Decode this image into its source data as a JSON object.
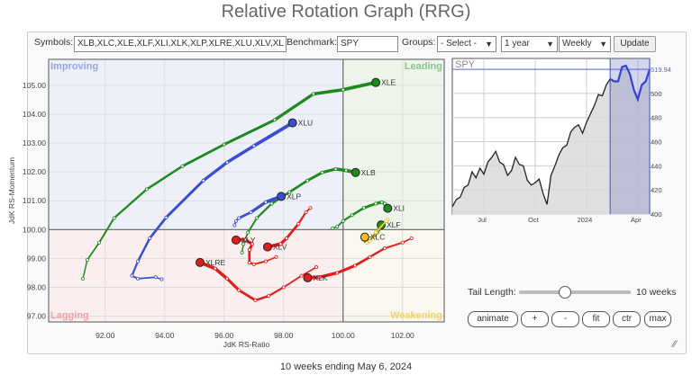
{
  "title": "Relative Rotation Graph (RRG)",
  "controls": {
    "symbols_label": "Symbols:",
    "symbols_value": "XLB,XLC,XLE,XLF,XLI,XLK,XLP,XLRE,XLU,XLV,XL",
    "benchmark_label": "Benchmark:",
    "benchmark_value": "SPY",
    "groups_label": "Groups:",
    "groups_value": "- Select -",
    "period_value": "1 year",
    "interval_value": "Weekly",
    "update_label": "Update"
  },
  "rrg": {
    "xlabel": "JdK RS-Ratio",
    "ylabel": "JdK RS-Momentum",
    "xlim": [
      90.1,
      103.4
    ],
    "ylim": [
      96.8,
      105.9
    ],
    "xticks": [
      "92.00",
      "94.00",
      "96.00",
      "98.00",
      "100.00",
      "102.00"
    ],
    "yticks": [
      "97.00",
      "98.00",
      "99.00",
      "100.00",
      "101.00",
      "102.00",
      "103.00",
      "104.00",
      "105.00"
    ],
    "quadrants": {
      "improving": "Improving",
      "leading": "Leading",
      "lagging": "Lagging",
      "weakening": "Weakening"
    },
    "colors": {
      "leading": "#1e8a1e",
      "improving": "#3a4fd0",
      "lagging": "#e01e1e",
      "weakening": "#f0c020"
    },
    "series": [
      {
        "name": "XLE",
        "quad": "leading",
        "points": [
          [
            91.25,
            98.3
          ],
          [
            91.4,
            98.95
          ],
          [
            91.8,
            99.55
          ],
          [
            92.3,
            100.4
          ],
          [
            93.4,
            101.4
          ],
          [
            94.6,
            102.2
          ],
          [
            96,
            102.95
          ],
          [
            97.7,
            103.8
          ],
          [
            99,
            104.7
          ],
          [
            100,
            104.85
          ],
          [
            101.1,
            105.1
          ]
        ]
      },
      {
        "name": "XLU",
        "quad": "improving",
        "points": [
          [
            93.9,
            98.28
          ],
          [
            93.7,
            98.35
          ],
          [
            93.1,
            98.3
          ],
          [
            92.9,
            98.4
          ],
          [
            93.1,
            98.9
          ],
          [
            93.5,
            99.7
          ],
          [
            94.05,
            100.42
          ],
          [
            95.3,
            101.7
          ],
          [
            96.1,
            102.33
          ],
          [
            97.0,
            102.9
          ],
          [
            98.3,
            103.7
          ]
        ]
      },
      {
        "name": "XLB",
        "quad": "leading",
        "points": [
          [
            96.6,
            99.2
          ],
          [
            96.65,
            99.5
          ],
          [
            96.8,
            99.9
          ],
          [
            97.1,
            100.4
          ],
          [
            97.6,
            100.9
          ],
          [
            98.2,
            101.3
          ],
          [
            98.8,
            101.7
          ],
          [
            99.3,
            101.98
          ],
          [
            99.75,
            102.1
          ],
          [
            100.1,
            102.05
          ],
          [
            100.42,
            101.98
          ]
        ]
      },
      {
        "name": "XLP",
        "quad": "improving",
        "points": [
          [
            96.35,
            100.15
          ],
          [
            96.4,
            100.3
          ],
          [
            96.5,
            100.4
          ],
          [
            96.9,
            100.6
          ],
          [
            97.4,
            100.95
          ],
          [
            97.92,
            101.15
          ]
        ]
      },
      {
        "name": "XLI",
        "quad": "leading",
        "points": [
          [
            99.65,
            100.05
          ],
          [
            99.8,
            100.1
          ],
          [
            100,
            100.3
          ],
          [
            100.3,
            100.5
          ],
          [
            100.7,
            100.75
          ],
          [
            101.1,
            100.9
          ],
          [
            101.3,
            100.95
          ],
          [
            101.4,
            100.9
          ],
          [
            101.5,
            100.74
          ]
        ]
      },
      {
        "name": "XLF",
        "quad": "leading",
        "points": [
          [
            100.75,
            99.6
          ],
          [
            100.9,
            99.7
          ],
          [
            101.05,
            99.8
          ],
          [
            101.15,
            99.9
          ],
          [
            101.2,
            100.0
          ],
          [
            101.28,
            100.16
          ]
        ]
      },
      {
        "name": "XLC",
        "quad": "weakening",
        "points": [
          [
            101.5,
            100.35
          ],
          [
            101.45,
            100.3
          ],
          [
            101.1,
            99.9
          ],
          [
            100.9,
            99.6
          ],
          [
            100.8,
            99.55
          ],
          [
            100.73,
            99.74
          ]
        ]
      },
      {
        "name": "XLV",
        "quad": "lagging",
        "points": [
          [
            98.9,
            100.75
          ],
          [
            98.75,
            100.6
          ],
          [
            98.5,
            100.2
          ],
          [
            98.1,
            99.7
          ],
          [
            97.9,
            99.5
          ],
          [
            97.46,
            99.4
          ]
        ]
      },
      {
        "name": "XLY",
        "quad": "lagging",
        "points": [
          [
            97.75,
            99.05
          ],
          [
            97.4,
            98.9
          ],
          [
            97.0,
            98.8
          ],
          [
            96.85,
            98.85
          ],
          [
            96.85,
            99.3
          ],
          [
            96.95,
            99.5
          ],
          [
            96.7,
            99.65
          ],
          [
            96.4,
            99.64
          ]
        ]
      },
      {
        "name": "XLRE",
        "quad": "lagging",
        "points": [
          [
            99.1,
            98.7
          ],
          [
            98.6,
            98.4
          ],
          [
            98.0,
            98.0
          ],
          [
            97.5,
            97.7
          ],
          [
            97.05,
            97.55
          ],
          [
            96.5,
            97.9
          ],
          [
            96.1,
            98.3
          ],
          [
            95.7,
            98.65
          ],
          [
            95.19,
            98.86
          ]
        ]
      },
      {
        "name": "XLK",
        "quad": "lagging",
        "points": [
          [
            102.3,
            99.7
          ],
          [
            102.0,
            99.55
          ],
          [
            101.4,
            99.35
          ],
          [
            100.9,
            99.05
          ],
          [
            100.4,
            98.75
          ],
          [
            99.8,
            98.5
          ],
          [
            99.2,
            98.35
          ],
          [
            98.81,
            98.33
          ]
        ]
      }
    ]
  },
  "benchmark_chart": {
    "label": "SPY",
    "last_value": "519.94",
    "ylim": [
      400,
      529
    ],
    "yticks": [
      "400",
      "420",
      "440",
      "460",
      "480",
      "500"
    ],
    "xticks": [
      "Jul",
      "Oct",
      "2024",
      "Apr"
    ],
    "prices": [
      406,
      412,
      414,
      422,
      424,
      435,
      430,
      438,
      433,
      443,
      447,
      452,
      443,
      441,
      432,
      436,
      447,
      441,
      440,
      428,
      424,
      426,
      429,
      417,
      408,
      432,
      440,
      449,
      455,
      457,
      468,
      472,
      474,
      467,
      476,
      483,
      490,
      499,
      498,
      507,
      512,
      510,
      510,
      522,
      523,
      516,
      503,
      495,
      507,
      510,
      519.94
    ],
    "tail_weeks": 10
  },
  "tail": {
    "label": "Tail Length:",
    "value_label": "10 weeks",
    "fraction": 0.4
  },
  "buttons": {
    "animate": "animate",
    "plus": "+",
    "minus": "-",
    "fit": "fit",
    "ctr": "ctr",
    "max": "max"
  },
  "footer": "10 weeks ending May 6, 2024"
}
